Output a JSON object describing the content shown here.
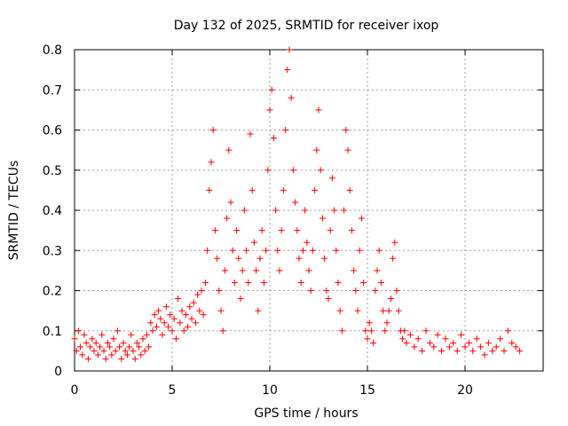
{
  "chart_data": {
    "type": "scatter",
    "title": "Day 132 of 2025, SRMTID for receiver ixop",
    "xlabel": "GPS time / hours",
    "ylabel": "SRMTID / TECUs",
    "xlim": [
      0,
      24
    ],
    "ylim": [
      0,
      0.8
    ],
    "xticks": [
      0,
      5,
      10,
      15,
      20
    ],
    "xtick_labels": [
      "0",
      "5",
      "10",
      "15",
      "20"
    ],
    "yticks": [
      0,
      0.1,
      0.2,
      0.3,
      0.4,
      0.5,
      0.6,
      0.7,
      0.8
    ],
    "ytick_labels": [
      "0",
      "0.1",
      "0.2",
      "0.3",
      "0.4",
      "0.5",
      "0.6",
      "0.7",
      "0.8"
    ],
    "grid": true,
    "marker": "+",
    "color": "#ff0000",
    "series": [
      {
        "name": "SRMTID",
        "points": [
          [
            0.0,
            0.08
          ],
          [
            0.1,
            0.05
          ],
          [
            0.2,
            0.1
          ],
          [
            0.3,
            0.06
          ],
          [
            0.4,
            0.04
          ],
          [
            0.5,
            0.09
          ],
          [
            0.6,
            0.07
          ],
          [
            0.7,
            0.03
          ],
          [
            0.8,
            0.06
          ],
          [
            0.9,
            0.08
          ],
          [
            1.0,
            0.05
          ],
          [
            1.1,
            0.07
          ],
          [
            1.2,
            0.04
          ],
          [
            1.3,
            0.06
          ],
          [
            1.4,
            0.09
          ],
          [
            1.5,
            0.05
          ],
          [
            1.6,
            0.03
          ],
          [
            1.7,
            0.07
          ],
          [
            1.8,
            0.06
          ],
          [
            1.9,
            0.04
          ],
          [
            2.0,
            0.08
          ],
          [
            2.1,
            0.05
          ],
          [
            2.2,
            0.1
          ],
          [
            2.3,
            0.06
          ],
          [
            2.4,
            0.03
          ],
          [
            2.5,
            0.07
          ],
          [
            2.6,
            0.05
          ],
          [
            2.7,
            0.04
          ],
          [
            2.8,
            0.06
          ],
          [
            2.9,
            0.09
          ],
          [
            3.0,
            0.05
          ],
          [
            3.1,
            0.03
          ],
          [
            3.2,
            0.07
          ],
          [
            3.3,
            0.06
          ],
          [
            3.4,
            0.04
          ],
          [
            3.5,
            0.08
          ],
          [
            3.6,
            0.05
          ],
          [
            3.7,
            0.09
          ],
          [
            3.8,
            0.06
          ],
          [
            3.9,
            0.12
          ],
          [
            4.0,
            0.1
          ],
          [
            4.1,
            0.14
          ],
          [
            4.2,
            0.11
          ],
          [
            4.3,
            0.15
          ],
          [
            4.4,
            0.13
          ],
          [
            4.5,
            0.09
          ],
          [
            4.6,
            0.12
          ],
          [
            4.7,
            0.16
          ],
          [
            4.8,
            0.11
          ],
          [
            4.9,
            0.14
          ],
          [
            5.0,
            0.1
          ],
          [
            5.1,
            0.13
          ],
          [
            5.2,
            0.08
          ],
          [
            5.3,
            0.18
          ],
          [
            5.4,
            0.12
          ],
          [
            5.5,
            0.15
          ],
          [
            5.6,
            0.1
          ],
          [
            5.7,
            0.14
          ],
          [
            5.8,
            0.11
          ],
          [
            5.9,
            0.16
          ],
          [
            6.0,
            0.13
          ],
          [
            6.1,
            0.17
          ],
          [
            6.2,
            0.12
          ],
          [
            6.3,
            0.19
          ],
          [
            6.4,
            0.15
          ],
          [
            6.5,
            0.2
          ],
          [
            6.6,
            0.14
          ],
          [
            6.7,
            0.22
          ],
          [
            6.8,
            0.3
          ],
          [
            6.9,
            0.45
          ],
          [
            7.0,
            0.52
          ],
          [
            7.1,
            0.6
          ],
          [
            7.2,
            0.35
          ],
          [
            7.3,
            0.28
          ],
          [
            7.4,
            0.2
          ],
          [
            7.5,
            0.15
          ],
          [
            7.6,
            0.1
          ],
          [
            7.7,
            0.25
          ],
          [
            7.8,
            0.38
          ],
          [
            7.9,
            0.55
          ],
          [
            8.0,
            0.42
          ],
          [
            8.1,
            0.3
          ],
          [
            8.2,
            0.22
          ],
          [
            8.3,
            0.35
          ],
          [
            8.4,
            0.28
          ],
          [
            8.5,
            0.18
          ],
          [
            8.6,
            0.25
          ],
          [
            8.7,
            0.4
          ],
          [
            8.8,
            0.3
          ],
          [
            8.9,
            0.22
          ],
          [
            9.0,
            0.59
          ],
          [
            9.1,
            0.45
          ],
          [
            9.2,
            0.32
          ],
          [
            9.3,
            0.25
          ],
          [
            9.4,
            0.15
          ],
          [
            9.5,
            0.28
          ],
          [
            9.6,
            0.35
          ],
          [
            9.7,
            0.22
          ],
          [
            9.8,
            0.3
          ],
          [
            9.9,
            0.5
          ],
          [
            10.0,
            0.65
          ],
          [
            10.1,
            0.7
          ],
          [
            10.2,
            0.58
          ],
          [
            10.3,
            0.4
          ],
          [
            10.4,
            0.3
          ],
          [
            10.5,
            0.25
          ],
          [
            10.6,
            0.35
          ],
          [
            10.7,
            0.45
          ],
          [
            10.8,
            0.6
          ],
          [
            10.9,
            0.75
          ],
          [
            11.0,
            0.8
          ],
          [
            11.1,
            0.68
          ],
          [
            11.2,
            0.5
          ],
          [
            11.3,
            0.42
          ],
          [
            11.4,
            0.35
          ],
          [
            11.5,
            0.28
          ],
          [
            11.6,
            0.22
          ],
          [
            11.7,
            0.3
          ],
          [
            11.8,
            0.4
          ],
          [
            11.9,
            0.32
          ],
          [
            12.0,
            0.25
          ],
          [
            12.1,
            0.2
          ],
          [
            12.2,
            0.3
          ],
          [
            12.3,
            0.45
          ],
          [
            12.4,
            0.55
          ],
          [
            12.5,
            0.65
          ],
          [
            12.6,
            0.5
          ],
          [
            12.7,
            0.38
          ],
          [
            12.8,
            0.28
          ],
          [
            12.9,
            0.2
          ],
          [
            13.0,
            0.18
          ],
          [
            13.1,
            0.35
          ],
          [
            13.2,
            0.48
          ],
          [
            13.3,
            0.4
          ],
          [
            13.4,
            0.3
          ],
          [
            13.5,
            0.22
          ],
          [
            13.6,
            0.15
          ],
          [
            13.7,
            0.1
          ],
          [
            13.8,
            0.4
          ],
          [
            13.9,
            0.6
          ],
          [
            14.0,
            0.55
          ],
          [
            14.1,
            0.45
          ],
          [
            14.2,
            0.35
          ],
          [
            14.3,
            0.25
          ],
          [
            14.4,
            0.2
          ],
          [
            14.5,
            0.15
          ],
          [
            14.6,
            0.3
          ],
          [
            14.7,
            0.38
          ],
          [
            14.8,
            0.22
          ],
          [
            14.9,
            0.1
          ],
          [
            15.0,
            0.08
          ],
          [
            15.1,
            0.12
          ],
          [
            15.2,
            0.1
          ],
          [
            15.3,
            0.07
          ],
          [
            15.4,
            0.2
          ],
          [
            15.5,
            0.25
          ],
          [
            15.6,
            0.3
          ],
          [
            15.7,
            0.22
          ],
          [
            15.8,
            0.15
          ],
          [
            15.9,
            0.1
          ],
          [
            16.0,
            0.12
          ],
          [
            16.1,
            0.15
          ],
          [
            16.2,
            0.18
          ],
          [
            16.3,
            0.28
          ],
          [
            16.4,
            0.32
          ],
          [
            16.5,
            0.2
          ],
          [
            16.6,
            0.15
          ],
          [
            16.7,
            0.1
          ],
          [
            16.8,
            0.08
          ],
          [
            16.9,
            0.1
          ],
          [
            17.0,
            0.07
          ],
          [
            17.2,
            0.09
          ],
          [
            17.4,
            0.06
          ],
          [
            17.6,
            0.08
          ],
          [
            17.8,
            0.05
          ],
          [
            18.0,
            0.1
          ],
          [
            18.2,
            0.07
          ],
          [
            18.4,
            0.06
          ],
          [
            18.6,
            0.09
          ],
          [
            18.8,
            0.05
          ],
          [
            19.0,
            0.08
          ],
          [
            19.2,
            0.06
          ],
          [
            19.4,
            0.07
          ],
          [
            19.6,
            0.05
          ],
          [
            19.8,
            0.09
          ],
          [
            20.0,
            0.06
          ],
          [
            20.2,
            0.07
          ],
          [
            20.4,
            0.05
          ],
          [
            20.6,
            0.08
          ],
          [
            20.8,
            0.06
          ],
          [
            21.0,
            0.04
          ],
          [
            21.2,
            0.07
          ],
          [
            21.4,
            0.05
          ],
          [
            21.6,
            0.06
          ],
          [
            21.8,
            0.08
          ],
          [
            22.0,
            0.05
          ],
          [
            22.2,
            0.1
          ],
          [
            22.4,
            0.07
          ],
          [
            22.6,
            0.06
          ],
          [
            22.8,
            0.05
          ]
        ]
      }
    ]
  }
}
